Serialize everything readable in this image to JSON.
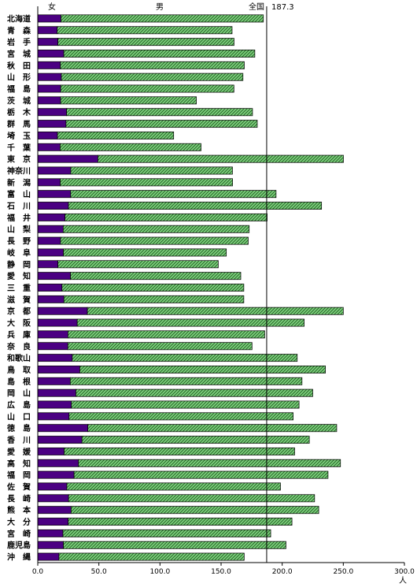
{
  "chart_data": {
    "type": "bar",
    "orientation": "horizontal",
    "stacked": true,
    "categories": [
      "北海道",
      "青　森",
      "岩　手",
      "宮　城",
      "秋　田",
      "山　形",
      "福　島",
      "茨　城",
      "栃　木",
      "群　馬",
      "埼　玉",
      "千　葉",
      "東　京",
      "神奈川",
      "新　潟",
      "富　山",
      "石　川",
      "福　井",
      "山　梨",
      "長　野",
      "岐　阜",
      "静　岡",
      "愛　知",
      "三　重",
      "滋　賀",
      "京　都",
      "大　阪",
      "兵　庫",
      "奈　良",
      "和歌山",
      "鳥　取",
      "島　根",
      "岡　山",
      "広　島",
      "山　口",
      "徳　島",
      "香　川",
      "愛　媛",
      "高　知",
      "福　岡",
      "佐　賀",
      "長　崎",
      "熊　本",
      "大　分",
      "宮　崎",
      "鹿児島",
      "沖　縄"
    ],
    "series": [
      {
        "name": "女",
        "color": "#4b0082",
        "pattern": "solid",
        "values": [
          19.0,
          15.9,
          16.5,
          21.3,
          18.5,
          19.3,
          18.8,
          18.7,
          23.6,
          23.1,
          16.1,
          18.3,
          49.2,
          27.0,
          18.4,
          26.9,
          25.1,
          22.3,
          20.8,
          18.6,
          21.0,
          16.5,
          26.8,
          19.8,
          21.4,
          40.6,
          32.3,
          24.7,
          24.6,
          28.2,
          34.4,
          26.6,
          31.2,
          27.5,
          25.6,
          41.0,
          36.2,
          21.6,
          33.3,
          29.7,
          23.8,
          25.2,
          27.3,
          24.9,
          20.6,
          21.0,
          17.3
        ]
      },
      {
        "name": "男",
        "color": "#7ccf7c",
        "pattern": "hatched",
        "values": [
          165.6,
          143.1,
          144.1,
          156.3,
          150.5,
          148.6,
          141.7,
          111.1,
          152.1,
          156.5,
          95.1,
          115.3,
          200.9,
          132.3,
          141.0,
          168.1,
          207.1,
          165.4,
          152.2,
          153.6,
          133.3,
          131.2,
          139.3,
          148.8,
          147.2,
          209.4,
          185.7,
          161.0,
          150.7,
          184.1,
          201.0,
          189.6,
          193.8,
          186.3,
          183.4,
          203.6,
          186.0,
          188.6,
          214.4,
          207.8,
          174.8,
          201.3,
          202.6,
          183.1,
          170.0,
          182.1,
          151.6
        ]
      }
    ],
    "legend_labels": [
      "女",
      "男"
    ],
    "reference_line": {
      "label": "全国",
      "value": 187.3
    },
    "xlim": [
      0,
      300
    ],
    "xticks": [
      "0.0",
      "50.0",
      "100.0",
      "150.0",
      "200.0",
      "250.0",
      "300.0"
    ],
    "xunit": "人",
    "grid": false
  }
}
